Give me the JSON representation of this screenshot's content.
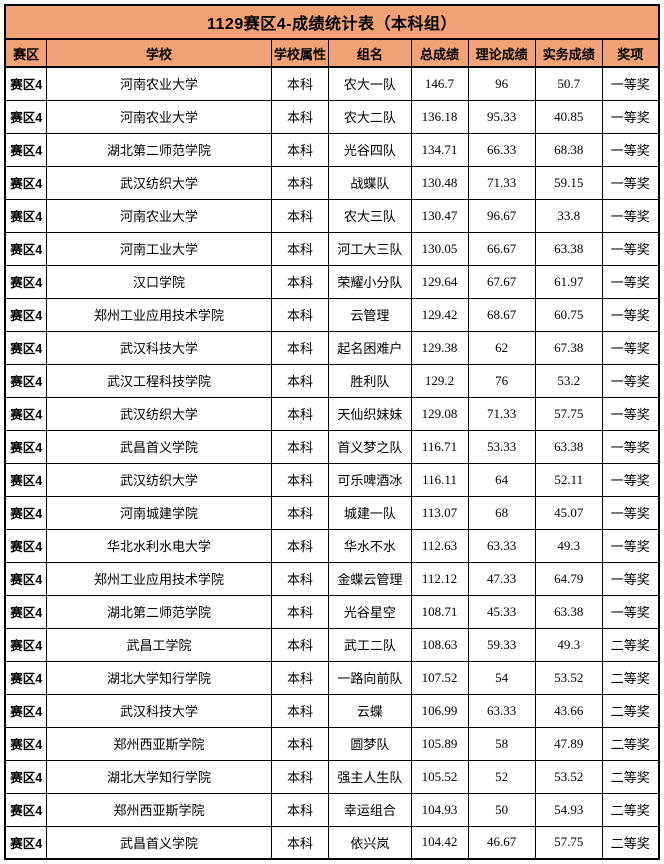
{
  "title": "1129赛区4-成绩统计表（本科组）",
  "colors": {
    "header_bg": "#F0A276",
    "border": "#000000",
    "row_bg": "#FFFFFF",
    "text": "#000000"
  },
  "table": {
    "headers": [
      "赛区",
      "学校",
      "学校属性",
      "组名",
      "总成绩",
      "理论成绩",
      "实务成绩",
      "奖项"
    ],
    "column_keys": [
      "region",
      "school",
      "school-type",
      "team-name",
      "total-score",
      "theory-score",
      "practice-score",
      "award"
    ],
    "rows": [
      [
        "赛区4",
        "河南农业大学",
        "本科",
        "农大一队",
        "146.7",
        "96",
        "50.7",
        "一等奖"
      ],
      [
        "赛区4",
        "河南农业大学",
        "本科",
        "农大二队",
        "136.18",
        "95.33",
        "40.85",
        "一等奖"
      ],
      [
        "赛区4",
        "湖北第二师范学院",
        "本科",
        "光谷四队",
        "134.71",
        "66.33",
        "68.38",
        "一等奖"
      ],
      [
        "赛区4",
        "武汉纺织大学",
        "本科",
        "战蝶队",
        "130.48",
        "71.33",
        "59.15",
        "一等奖"
      ],
      [
        "赛区4",
        "河南农业大学",
        "本科",
        "农大三队",
        "130.47",
        "96.67",
        "33.8",
        "一等奖"
      ],
      [
        "赛区4",
        "河南工业大学",
        "本科",
        "河工大三队",
        "130.05",
        "66.67",
        "63.38",
        "一等奖"
      ],
      [
        "赛区4",
        "汉口学院",
        "本科",
        "荣耀小分队",
        "129.64",
        "67.67",
        "61.97",
        "一等奖"
      ],
      [
        "赛区4",
        "郑州工业应用技术学院",
        "本科",
        "云管理",
        "129.42",
        "68.67",
        "60.75",
        "一等奖"
      ],
      [
        "赛区4",
        "武汉科技大学",
        "本科",
        "起名困难户",
        "129.38",
        "62",
        "67.38",
        "一等奖"
      ],
      [
        "赛区4",
        "武汉工程科技学院",
        "本科",
        "胜利队",
        "129.2",
        "76",
        "53.2",
        "一等奖"
      ],
      [
        "赛区4",
        "武汉纺织大学",
        "本科",
        "天仙织妹妹",
        "129.08",
        "71.33",
        "57.75",
        "一等奖"
      ],
      [
        "赛区4",
        "武昌首义学院",
        "本科",
        "首义梦之队",
        "116.71",
        "53.33",
        "63.38",
        "一等奖"
      ],
      [
        "赛区4",
        "武汉纺织大学",
        "本科",
        "可乐啤酒冰",
        "116.11",
        "64",
        "52.11",
        "一等奖"
      ],
      [
        "赛区4",
        "河南城建学院",
        "本科",
        "城建一队",
        "113.07",
        "68",
        "45.07",
        "一等奖"
      ],
      [
        "赛区4",
        "华北水利水电大学",
        "本科",
        "华水不水",
        "112.63",
        "63.33",
        "49.3",
        "一等奖"
      ],
      [
        "赛区4",
        "郑州工业应用技术学院",
        "本科",
        "金蝶云管理",
        "112.12",
        "47.33",
        "64.79",
        "一等奖"
      ],
      [
        "赛区4",
        "湖北第二师范学院",
        "本科",
        "光谷星空",
        "108.71",
        "45.33",
        "63.38",
        "一等奖"
      ],
      [
        "赛区4",
        "武昌工学院",
        "本科",
        "武工二队",
        "108.63",
        "59.33",
        "49.3",
        "二等奖"
      ],
      [
        "赛区4",
        "湖北大学知行学院",
        "本科",
        "一路向前队",
        "107.52",
        "54",
        "53.52",
        "二等奖"
      ],
      [
        "赛区4",
        "武汉科技大学",
        "本科",
        "云蝶",
        "106.99",
        "63.33",
        "43.66",
        "二等奖"
      ],
      [
        "赛区4",
        "郑州西亚斯学院",
        "本科",
        "圆梦队",
        "105.89",
        "58",
        "47.89",
        "二等奖"
      ],
      [
        "赛区4",
        "湖北大学知行学院",
        "本科",
        "强主人生队",
        "105.52",
        "52",
        "53.52",
        "二等奖"
      ],
      [
        "赛区4",
        "郑州西亚斯学院",
        "本科",
        "幸运组合",
        "104.93",
        "50",
        "54.93",
        "二等奖"
      ],
      [
        "赛区4",
        "武昌首义学院",
        "本科",
        "依兴岚",
        "104.42",
        "46.67",
        "57.75",
        "二等奖"
      ]
    ]
  }
}
